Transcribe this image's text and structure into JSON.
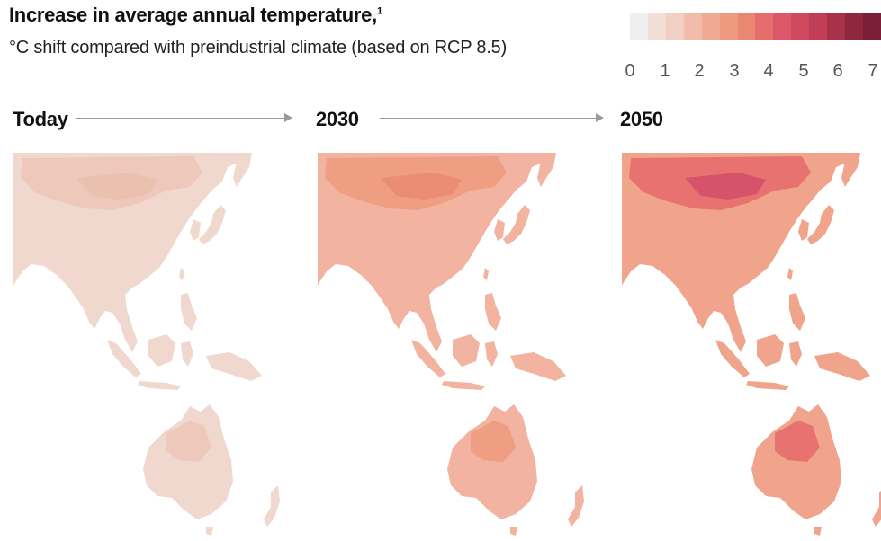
{
  "header": {
    "title": "Increase in average annual temperature,",
    "title_footnote": "1",
    "subtitle": "°C shift compared with preindustrial climate (based on RCP 8.5)"
  },
  "legend": {
    "ticks": [
      "0",
      "1",
      "2",
      "3",
      "4",
      "5",
      "6",
      "7"
    ],
    "colors": [
      "#efefef",
      "#f3ded6",
      "#f2cfc3",
      "#f1bdaa",
      "#f0aa93",
      "#ee9a80",
      "#ea8772",
      "#e56d6d",
      "#dc5868",
      "#cf4a5f",
      "#c03e56",
      "#a8324a",
      "#8f283f",
      "#7a1f35"
    ]
  },
  "panels": [
    {
      "label": "Today",
      "land_color": "#f1d8ce",
      "hot_color": "#ecc7b9",
      "hotter_color": "#e9bfae"
    },
    {
      "label": "2030",
      "land_color": "#f2b3a0",
      "hot_color": "#ee9a80",
      "hotter_color": "#ea8b73"
    },
    {
      "label": "2050",
      "land_color": "#f0a48c",
      "hot_color": "#e56d6d",
      "hotter_color": "#d4506a"
    }
  ]
}
